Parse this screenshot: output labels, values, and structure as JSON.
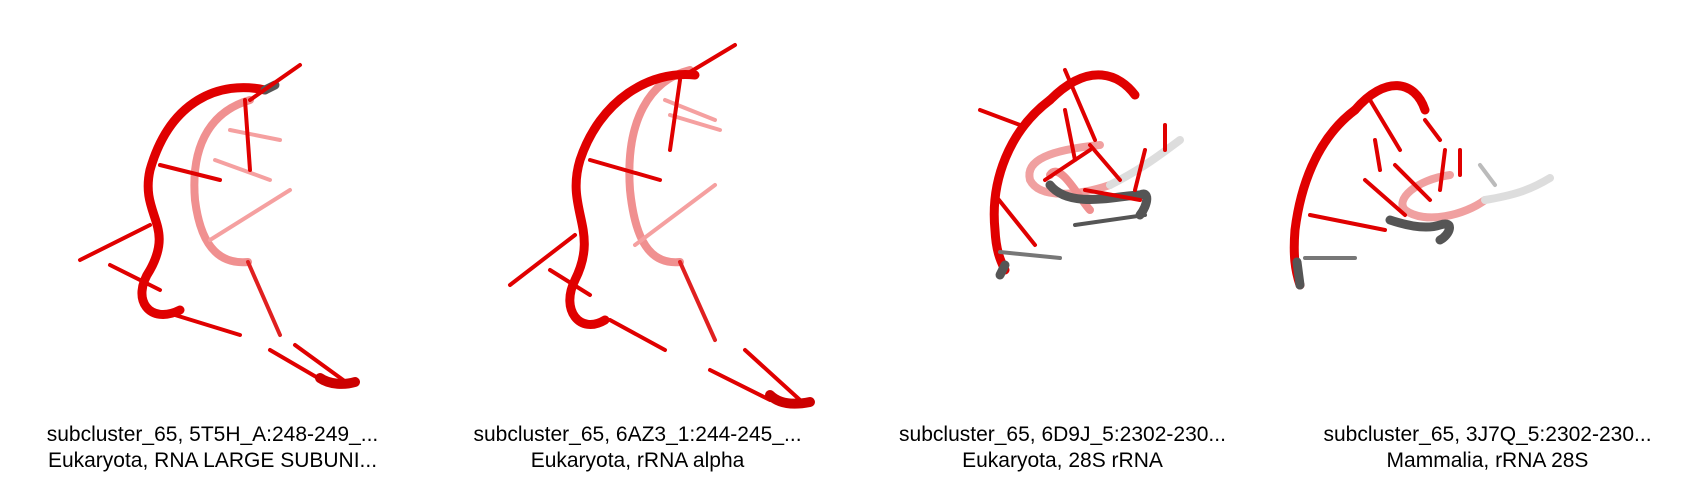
{
  "panels": [
    {
      "title": "subcluster_65, 5T5H_A:248-249_...",
      "subtitle": "Eukaryota, RNA LARGE SUBUNI..."
    },
    {
      "title": "subcluster_65, 6AZ3_1:244-245_...",
      "subtitle": "Eukaryota, rRNA alpha"
    },
    {
      "title": "subcluster_65, 6D9J_5:2302-230...",
      "subtitle": "Eukaryota, 28S rRNA"
    },
    {
      "title": "subcluster_65, 3J7Q_5:2302-230...",
      "subtitle": "Mammalia, rRNA 28S"
    }
  ],
  "colors": {
    "backbone": "#e00000",
    "backbone_faded": "#f08080",
    "end_grey": "#555555",
    "light_grey": "#cccccc"
  }
}
